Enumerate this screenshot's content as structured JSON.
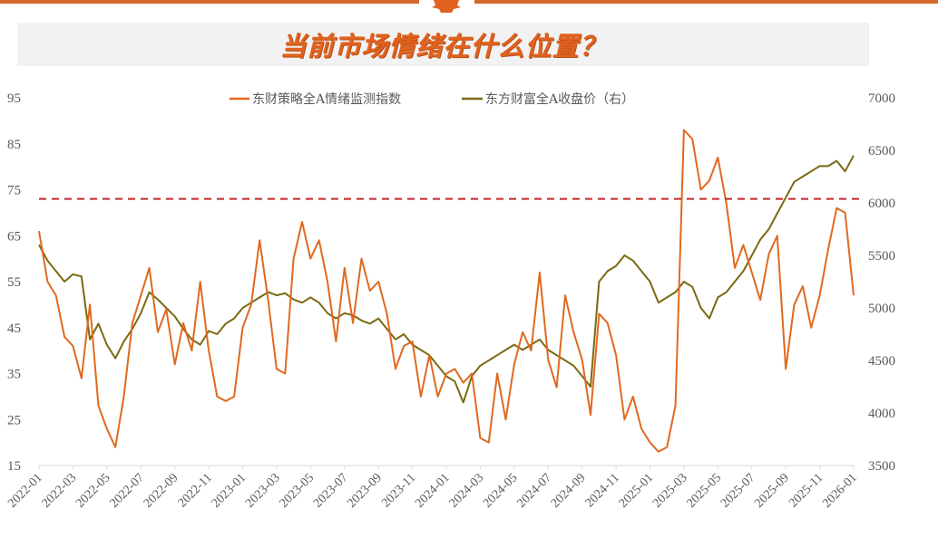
{
  "header": {
    "title": "当前市场情绪在什么位置？"
  },
  "colors": {
    "accent": "#d4682a",
    "title": "#e0621e",
    "sentiment_line": "#e0691f",
    "price_line": "#7a6a12",
    "threshold_line": "#c0282a",
    "axis": "#d9d9d9",
    "tick_text": "#595959"
  },
  "chart_data": {
    "type": "line",
    "title": "当前市场情绪在什么位置？",
    "legend": [
      "东财策略全A情绪监测指数",
      "东方财富全A收盘价（右）"
    ],
    "legend_position": "top",
    "grid": false,
    "left_axis": {
      "label": "",
      "ticks": [
        15,
        25,
        35,
        45,
        55,
        65,
        75,
        85,
        95
      ],
      "range": [
        15,
        95
      ]
    },
    "right_axis": {
      "label": "",
      "ticks": [
        3500,
        4000,
        4500,
        5000,
        5500,
        6000,
        6500,
        7000
      ],
      "range": [
        3500,
        7000
      ]
    },
    "x_ticks": [
      "2022-01",
      "2022-03",
      "2022-05",
      "2022-07",
      "2022-09",
      "2022-11",
      "2023-01",
      "2023-03",
      "2023-05",
      "2023-07",
      "2023-09",
      "2023-11",
      "2024-01",
      "2024-03",
      "2024-05",
      "2024-07",
      "2024-09",
      "2024-11",
      "2025-01",
      "2025-03",
      "2025-05",
      "2025-07",
      "2025-09",
      "2025-11",
      "2026-01"
    ],
    "threshold": {
      "value": 73,
      "style": "dashed",
      "axis": "left"
    },
    "x": [
      "2022-01a",
      "2022-01b",
      "2022-02a",
      "2022-02b",
      "2022-03a",
      "2022-03b",
      "2022-04a",
      "2022-04b",
      "2022-05a",
      "2022-05b",
      "2022-06a",
      "2022-06b",
      "2022-07a",
      "2022-07b",
      "2022-08a",
      "2022-08b",
      "2022-09a",
      "2022-09b",
      "2022-10a",
      "2022-10b",
      "2022-11a",
      "2022-11b",
      "2022-12a",
      "2022-12b",
      "2023-01a",
      "2023-01b",
      "2023-02a",
      "2023-02b",
      "2023-03a",
      "2023-03b",
      "2023-04a",
      "2023-04b",
      "2023-05a",
      "2023-05b",
      "2023-06a",
      "2023-06b",
      "2023-07a",
      "2023-07b",
      "2023-08a",
      "2023-08b",
      "2023-09a",
      "2023-09b",
      "2023-10a",
      "2023-10b",
      "2023-11a",
      "2023-11b",
      "2023-12a",
      "2023-12b",
      "2024-01a",
      "2024-01b",
      "2024-02a",
      "2024-02b",
      "2024-03a",
      "2024-03b",
      "2024-04a",
      "2024-04b",
      "2024-05a",
      "2024-05b",
      "2024-06a",
      "2024-06b",
      "2024-07a",
      "2024-07b",
      "2024-08a",
      "2024-08b",
      "2024-09a",
      "2024-09b",
      "2024-10a",
      "2024-10b",
      "2024-11a",
      "2024-11b",
      "2024-12a",
      "2024-12b",
      "2025-01a",
      "2025-01b",
      "2025-02a",
      "2025-02b",
      "2025-03a",
      "2025-03b",
      "2025-04a",
      "2025-04b",
      "2025-05a",
      "2025-05b",
      "2025-06a",
      "2025-06b",
      "2025-07a",
      "2025-07b",
      "2025-08a",
      "2025-08b",
      "2025-09a",
      "2025-09b",
      "2025-10a",
      "2025-10b",
      "2025-11a",
      "2025-11b",
      "2025-12a",
      "2025-12b",
      "2026-01a"
    ],
    "series": [
      {
        "name": "东财策略全A情绪监测指数",
        "axis": "left",
        "values": [
          66,
          55,
          52,
          43,
          41,
          34,
          50,
          28,
          23,
          19,
          30,
          46,
          52,
          58,
          44,
          49,
          37,
          46,
          40,
          55,
          40,
          30,
          29,
          30,
          45,
          50,
          64,
          51,
          36,
          35,
          60,
          68,
          60,
          64,
          55,
          42,
          58,
          46,
          60,
          53,
          55,
          48,
          36,
          41,
          42,
          30,
          39,
          30,
          35,
          36,
          33,
          35,
          21,
          20,
          35,
          25,
          37,
          44,
          40,
          57,
          38,
          32,
          52,
          44,
          38,
          26,
          48,
          46,
          39,
          25,
          30,
          23,
          20,
          18,
          19,
          28,
          88,
          86,
          75,
          77,
          82,
          72,
          58,
          63,
          57,
          51,
          61,
          65,
          36,
          50,
          54,
          45,
          52,
          62,
          71,
          70,
          52
        ]
      },
      {
        "name": "东方财富全A收盘价（右）",
        "axis": "left_scaled_right",
        "values": [
          5600,
          5450,
          5350,
          5250,
          5320,
          5300,
          4700,
          4850,
          4650,
          4520,
          4680,
          4800,
          4950,
          5150,
          5080,
          5000,
          4920,
          4800,
          4700,
          4650,
          4780,
          4750,
          4850,
          4900,
          5000,
          5050,
          5100,
          5150,
          5120,
          5140,
          5080,
          5050,
          5100,
          5050,
          4950,
          4900,
          4950,
          4930,
          4880,
          4850,
          4900,
          4800,
          4700,
          4750,
          4650,
          4600,
          4550,
          4450,
          4350,
          4300,
          4100,
          4350,
          4450,
          4500,
          4550,
          4600,
          4650,
          4600,
          4650,
          4700,
          4600,
          4550,
          4500,
          4450,
          4350,
          4250,
          5250,
          5350,
          5400,
          5500,
          5450,
          5350,
          5250,
          5050,
          5100,
          5150,
          5250,
          5200,
          5000,
          4900,
          5100,
          5150,
          5250,
          5350,
          5500,
          5650,
          5750,
          5900,
          6050,
          6200,
          6250,
          6300,
          6350,
          6350,
          6400,
          6300,
          6450
        ]
      }
    ]
  },
  "legend": {
    "item1": "东财策略全A情绪监测指数",
    "item2": "东方财富全A收盘价（右）"
  },
  "axes": {
    "left_ticks": [
      "95",
      "85",
      "75",
      "65",
      "55",
      "45",
      "35",
      "25",
      "15"
    ],
    "right_ticks": [
      "7000",
      "6500",
      "6000",
      "5500",
      "5000",
      "4500",
      "4000",
      "3500"
    ]
  }
}
